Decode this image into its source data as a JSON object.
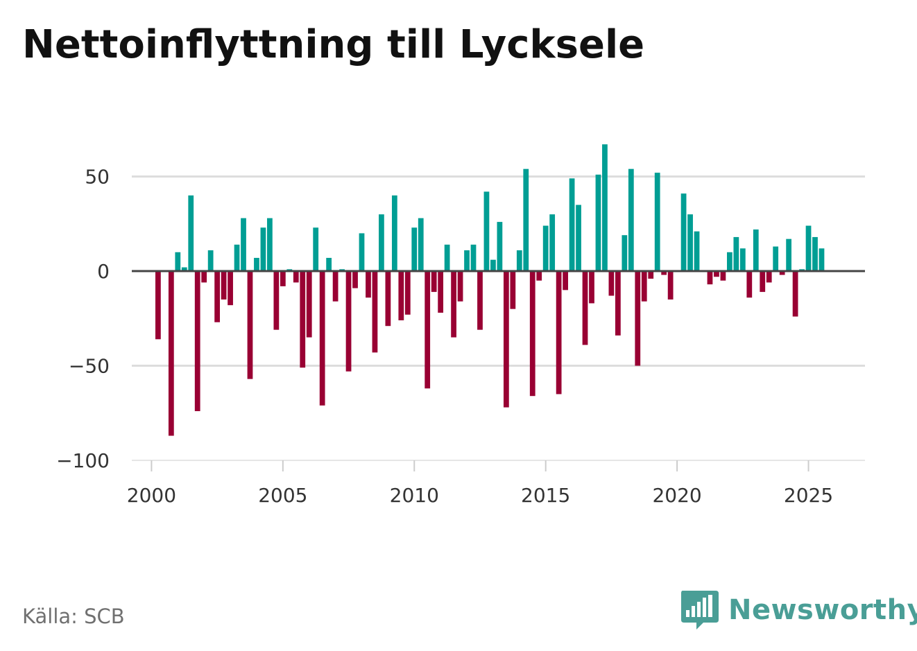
{
  "title": "Nettoinflyttning till Lycksele",
  "source": "Källa: SCB",
  "brand": {
    "name": "Newsworthy",
    "logo_icon": "bar-chart-speech-bubble-icon"
  },
  "colors": {
    "positive": "#009e94",
    "negative": "#990033",
    "grid": "#dddddd",
    "zero_line": "#444444",
    "brand": "#4a9e96"
  },
  "chart_data": {
    "type": "bar",
    "title": "Nettoinflyttning till Lycksele",
    "xlabel": "",
    "ylabel": "",
    "xlim": [
      1999.25,
      2027.15
    ],
    "ylim": [
      -100,
      70
    ],
    "x_ticks": [
      2000,
      2005,
      2010,
      2015,
      2020,
      2025
    ],
    "x_tick_labels": [
      "2000",
      "2005",
      "2010",
      "2015",
      "2020",
      "2025"
    ],
    "y_ticks": [
      50,
      0,
      -50,
      -100
    ],
    "y_tick_labels": [
      "50",
      "0",
      "−50",
      "−100"
    ],
    "grid": true,
    "frequency": "quarterly",
    "start": 2000,
    "values": [
      0,
      -36,
      0,
      -87,
      10,
      2,
      40,
      -74,
      -6,
      11,
      -27,
      -15,
      -18,
      14,
      28,
      -57,
      7,
      23,
      28,
      -31,
      -8,
      1,
      -6,
      -51,
      -35,
      23,
      -71,
      7,
      -16,
      1,
      -53,
      -9,
      20,
      -14,
      -43,
      30,
      -29,
      40,
      -26,
      -23,
      23,
      28,
      -62,
      -11,
      -22,
      14,
      -35,
      -16,
      11,
      14,
      -31,
      42,
      6,
      26,
      -72,
      -20,
      11,
      54,
      -66,
      -5,
      24,
      30,
      -65,
      -10,
      49,
      35,
      -39,
      -17,
      51,
      67,
      -13,
      -34,
      19,
      54,
      -50,
      -16,
      -4,
      52,
      -2,
      -15,
      0,
      41,
      30,
      21,
      0,
      -7,
      -3,
      -5,
      10,
      18,
      12,
      -14,
      22,
      -11,
      -6,
      13,
      -2,
      17,
      -24,
      1,
      24,
      18,
      12
    ]
  }
}
